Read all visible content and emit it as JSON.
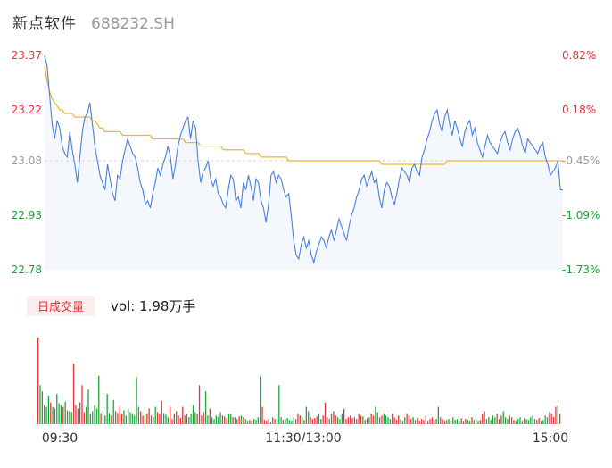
{
  "header": {
    "stock_name": "新点软件",
    "stock_code": "688232.SH"
  },
  "volume_panel": {
    "badge_label": "日成交量",
    "vol_text": "vol: 1.98万手"
  },
  "colors": {
    "price_line": "#4a7fe0",
    "avg_line": "#f0b52a",
    "area_fill": "#f4f8fd",
    "up": "#e5333a",
    "down": "#1aa33a",
    "muted": "#9a9a9a"
  },
  "chart_data": {
    "type": "line",
    "price_axis": {
      "ticks": [
        "23.37",
        "23.22",
        "23.08",
        "22.93",
        "22.78"
      ],
      "tick_values": [
        23.37,
        23.22,
        23.08,
        22.93,
        22.78
      ],
      "tick_colors": [
        "up",
        "up",
        "muted",
        "down",
        "down"
      ],
      "ylim": [
        22.78,
        23.37
      ]
    },
    "percent_axis": {
      "ticks": [
        "0.82%",
        "0.18%",
        "-0.45%",
        "-1.09%",
        "-1.73%"
      ],
      "tick_colors": [
        "up",
        "up",
        "muted",
        "down",
        "down"
      ]
    },
    "time_labels": [
      "09:30",
      "11:30/13:00",
      "15:00"
    ],
    "price_series": [
      23.37,
      23.34,
      23.26,
      23.18,
      23.14,
      23.19,
      23.17,
      23.12,
      23.1,
      23.09,
      23.16,
      23.11,
      23.07,
      23.02,
      23.09,
      23.16,
      23.2,
      23.21,
      23.24,
      23.18,
      23.12,
      23.08,
      23.04,
      23.02,
      23.0,
      23.07,
      23.03,
      22.99,
      22.97,
      23.04,
      23.03,
      23.08,
      23.11,
      23.14,
      23.12,
      23.1,
      23.09,
      23.06,
      23.02,
      23.0,
      22.96,
      22.97,
      22.95,
      22.99,
      23.02,
      23.06,
      23.04,
      23.07,
      23.09,
      23.12,
      23.09,
      23.03,
      23.07,
      23.12,
      23.15,
      23.17,
      23.19,
      23.2,
      23.14,
      23.19,
      23.17,
      23.08,
      23.02,
      23.05,
      23.06,
      23.08,
      23.03,
      23.01,
      23.03,
      22.99,
      22.98,
      22.96,
      22.95,
      23.0,
      23.04,
      23.03,
      22.97,
      22.98,
      22.95,
      23.02,
      23.0,
      23.04,
      23.01,
      22.97,
      23.03,
      23.02,
      22.97,
      22.95,
      22.91,
      22.96,
      23.04,
      23.05,
      23.02,
      23.04,
      23.03,
      23.0,
      22.98,
      22.99,
      22.93,
      22.86,
      22.82,
      22.81,
      22.85,
      22.87,
      22.84,
      22.86,
      22.82,
      22.8,
      22.83,
      22.85,
      22.87,
      22.86,
      22.84,
      22.87,
      22.89,
      22.86,
      22.89,
      22.92,
      22.9,
      22.88,
      22.86,
      22.9,
      22.93,
      22.95,
      22.98,
      23.0,
      23.03,
      23.04,
      23.01,
      23.03,
      23.05,
      23.02,
      23.03,
      22.98,
      22.95,
      23.0,
      23.02,
      23.01,
      22.98,
      22.96,
      22.99,
      23.03,
      23.06,
      23.05,
      23.04,
      23.02,
      23.06,
      23.07,
      23.05,
      23.04,
      23.09,
      23.11,
      23.14,
      23.16,
      23.19,
      23.21,
      23.22,
      23.18,
      23.16,
      23.2,
      23.22,
      23.18,
      23.15,
      23.19,
      23.17,
      23.14,
      23.12,
      23.16,
      23.18,
      23.19,
      23.15,
      23.17,
      23.13,
      23.11,
      23.09,
      23.12,
      23.15,
      23.13,
      23.12,
      23.11,
      23.1,
      23.13,
      23.15,
      23.16,
      23.13,
      23.11,
      23.14,
      23.16,
      23.17,
      23.15,
      23.12,
      23.1,
      23.14,
      23.13,
      23.12,
      23.11,
      23.1,
      23.12,
      23.13,
      23.09,
      23.07,
      23.04,
      23.05,
      23.06,
      23.08,
      23.0,
      23.0
    ],
    "avg_series": [
      23.34,
      23.3,
      23.27,
      23.25,
      23.24,
      23.23,
      23.22,
      23.22,
      23.21,
      23.21,
      23.21,
      23.21,
      23.2,
      23.2,
      23.2,
      23.2,
      23.2,
      23.2,
      23.2,
      23.19,
      23.19,
      23.18,
      23.17,
      23.17,
      23.16,
      23.16,
      23.16,
      23.16,
      23.16,
      23.16,
      23.16,
      23.15,
      23.15,
      23.15,
      23.15,
      23.15,
      23.15,
      23.15,
      23.15,
      23.15,
      23.15,
      23.15,
      23.15,
      23.14,
      23.14,
      23.14,
      23.14,
      23.14,
      23.14,
      23.14,
      23.14,
      23.14,
      23.14,
      23.14,
      23.14,
      23.14,
      23.13,
      23.13,
      23.13,
      23.13,
      23.13,
      23.13,
      23.12,
      23.12,
      23.12,
      23.12,
      23.12,
      23.12,
      23.12,
      23.12,
      23.12,
      23.11,
      23.11,
      23.11,
      23.11,
      23.11,
      23.11,
      23.11,
      23.11,
      23.11,
      23.1,
      23.1,
      23.1,
      23.1,
      23.1,
      23.1,
      23.09,
      23.09,
      23.09,
      23.09,
      23.09,
      23.09,
      23.09,
      23.09,
      23.09,
      23.09,
      23.09,
      23.08,
      23.08,
      23.08,
      23.08,
      23.08,
      23.08,
      23.08,
      23.08,
      23.08,
      23.08,
      23.08,
      23.08,
      23.08,
      23.08,
      23.08,
      23.08,
      23.08,
      23.08,
      23.08,
      23.08,
      23.08,
      23.08,
      23.08,
      23.08,
      23.08,
      23.08,
      23.08,
      23.08,
      23.08,
      23.08,
      23.08,
      23.08,
      23.08,
      23.08,
      23.08,
      23.08,
      23.08,
      23.07,
      23.07,
      23.07,
      23.07,
      23.07,
      23.07,
      23.07,
      23.07,
      23.07,
      23.07,
      23.07,
      23.07,
      23.07,
      23.07,
      23.07,
      23.07,
      23.07,
      23.07,
      23.07,
      23.07,
      23.07,
      23.07,
      23.07,
      23.07,
      23.07,
      23.07,
      23.08,
      23.08,
      23.08,
      23.08,
      23.08,
      23.08,
      23.08,
      23.08,
      23.08,
      23.08,
      23.08,
      23.08,
      23.08,
      23.08,
      23.08,
      23.08,
      23.08,
      23.08,
      23.08,
      23.08,
      23.08,
      23.08,
      23.08,
      23.08,
      23.08,
      23.08,
      23.08,
      23.08,
      23.08,
      23.08,
      23.08,
      23.08,
      23.08,
      23.08,
      23.08,
      23.08,
      23.08,
      23.08,
      23.08,
      23.08,
      23.08,
      23.08,
      23.08,
      23.08,
      23.08,
      23.08,
      23.08
    ],
    "volume": {
      "ylim": [
        0,
        100
      ],
      "values": [
        100,
        45,
        38,
        22,
        20,
        33,
        25,
        20,
        18,
        35,
        24,
        22,
        20,
        26,
        16,
        15,
        14,
        70,
        22,
        18,
        25,
        45,
        14,
        20,
        40,
        12,
        15,
        22,
        18,
        56,
        13,
        16,
        10,
        35,
        13,
        10,
        28,
        15,
        13,
        20,
        12,
        16,
        10,
        18,
        14,
        12,
        10,
        55,
        20,
        15,
        10,
        13,
        12,
        18,
        10,
        8,
        20,
        14,
        12,
        27,
        13,
        11,
        8,
        20,
        6,
        12,
        15,
        10,
        7,
        20,
        10,
        12,
        8,
        12,
        22,
        14,
        12,
        45,
        10,
        14,
        38,
        10,
        18,
        8,
        6,
        10,
        8,
        14,
        10,
        9,
        7,
        12,
        12,
        8,
        8,
        6,
        9,
        10,
        8,
        6,
        4,
        5,
        4,
        6,
        5,
        8,
        55,
        20,
        5,
        4,
        6,
        3,
        8,
        6,
        7,
        45,
        8,
        5,
        6,
        7,
        5,
        4,
        8,
        6,
        12,
        10,
        8,
        5,
        20,
        15,
        8,
        6,
        7,
        9,
        12,
        6,
        10,
        25,
        8,
        6,
        12,
        15,
        10,
        8,
        6,
        12,
        18,
        6,
        8,
        10,
        7,
        8,
        6,
        12,
        10,
        9,
        5,
        7,
        8,
        12,
        10,
        20,
        14,
        8,
        10,
        12,
        10,
        8,
        6,
        12,
        8,
        5,
        10,
        6,
        4,
        8,
        12,
        10,
        6,
        8,
        5,
        7,
        4,
        6,
        5,
        10,
        4,
        6,
        8,
        5,
        6,
        20,
        8,
        6,
        4,
        5,
        6,
        4,
        8,
        5,
        6,
        4,
        7,
        4,
        6,
        5,
        4,
        8,
        5,
        6,
        4,
        5,
        12,
        15,
        6,
        8,
        5,
        10,
        8,
        12,
        6,
        10,
        15,
        8,
        6,
        10,
        8,
        5,
        4,
        6,
        8,
        4,
        7,
        6,
        5,
        8,
        10,
        6,
        5,
        7,
        4,
        5,
        10,
        8,
        14,
        12,
        8,
        20,
        22,
        12
      ]
    }
  }
}
